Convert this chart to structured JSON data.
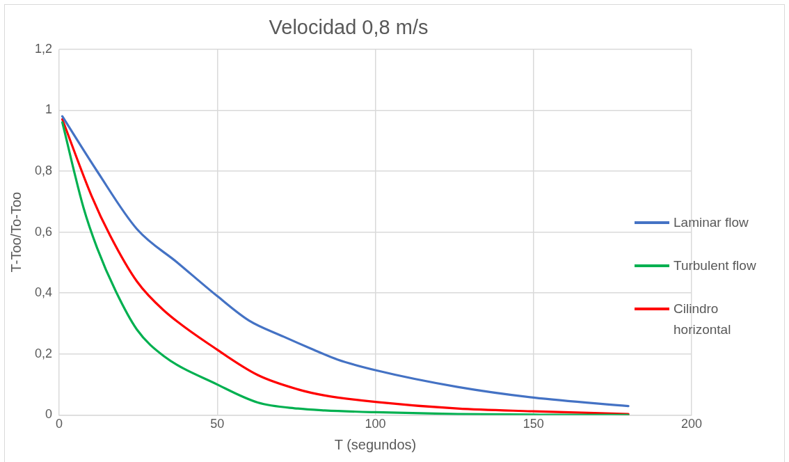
{
  "chart_data": {
    "type": "line",
    "title": "Velocidad 0,8 m/s",
    "xlabel": "T (segundos)",
    "ylabel": "T-Too/To-Too",
    "x": [
      1,
      12,
      24.6,
      37.4,
      50,
      60,
      71,
      79.6,
      88,
      100,
      126,
      150,
      180
    ],
    "series": [
      {
        "name": "Laminar flow",
        "color": "#4472c4",
        "values": [
          0.98,
          0.8,
          0.61,
          0.5,
          0.39,
          0.31,
          0.257,
          0.218,
          0.182,
          0.147,
          0.092,
          0.057,
          0.029
        ]
      },
      {
        "name": "Turbulent flow",
        "color": "#00b050",
        "x": [
          1,
          7.7,
          12,
          17.9,
          24.6,
          33,
          50,
          62.8,
          75.5,
          84,
          100,
          126,
          150,
          180
        ],
        "values": [
          0.96,
          0.68,
          0.548,
          0.406,
          0.28,
          0.194,
          0.1,
          0.041,
          0.021,
          0.015,
          0.009,
          0.003,
          0.001,
          0
        ]
      },
      {
        "name": "Cilindro horizontal",
        "color": "#ff0000",
        "x": [
          1,
          10.2,
          16.2,
          24.6,
          33,
          50,
          62.8,
          75.5,
          84,
          100,
          126,
          150,
          180
        ],
        "values": [
          0.97,
          0.72,
          0.587,
          0.438,
          0.344,
          0.214,
          0.131,
          0.084,
          0.064,
          0.043,
          0.021,
          0.012,
          0.003
        ]
      }
    ],
    "xlim": [
      0,
      200
    ],
    "xticks": [
      0,
      50,
      100,
      150,
      200
    ],
    "ylim": [
      0,
      1.2
    ],
    "yticks": [
      0,
      {
        "value": 0.2,
        "label": "0,2"
      },
      {
        "value": 0.4,
        "label": "0,4"
      },
      {
        "value": 0.6,
        "label": "0,6"
      },
      {
        "value": 0.8,
        "label": "0,8"
      },
      1,
      {
        "value": 1.2,
        "label": "1,2"
      }
    ],
    "grid": true,
    "legend": "right",
    "marker": "none",
    "line_style": "solid"
  }
}
